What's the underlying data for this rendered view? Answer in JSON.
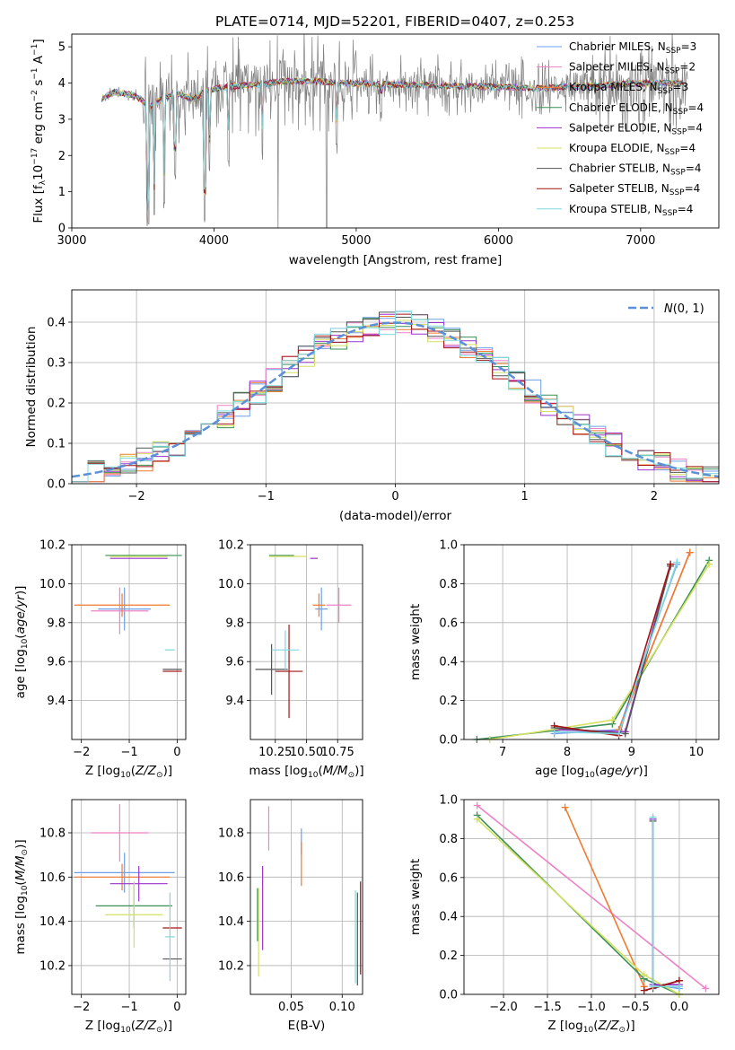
{
  "title": "PLATE=0714, MJD=52201, FIBERID=0407, z=0.253",
  "colors": {
    "chabrier_miles": "#6f9fe8",
    "salpeter_miles": "#ee82c6",
    "kroupa_miles": "#f07a2e",
    "chabrier_elodie": "#3a8f57",
    "salpeter_elodie": "#9a33cc",
    "kroupa_elodie": "#d4e060",
    "chabrier_stelib": "#555555",
    "salpeter_stelib": "#a31414",
    "kroupa_stelib": "#7fd8e0",
    "data": "#808080",
    "normal": "#5b8fd8"
  },
  "chart_data": [
    {
      "id": "spectrum",
      "type": "line",
      "xlabel": "wavelength [Angstrom, rest frame]",
      "ylabel": "Flux [f",
      "xlim": [
        3000,
        7550
      ],
      "ylim": [
        0,
        5.35
      ],
      "xticks": [
        "3000",
        "4000",
        "5000",
        "6000",
        "7000"
      ],
      "yticks": [
        "0",
        "1",
        "2",
        "3",
        "4",
        "5"
      ],
      "legend": [
        {
          "label": "Chabrier MILES, N",
          "sub": "SSP",
          "suffix": "=3",
          "color": "#6f9fe8"
        },
        {
          "label": "Salpeter MILES, N",
          "sub": "SSP",
          "suffix": "=2",
          "color": "#ee82c6"
        },
        {
          "label": "Kroupa MILES, N",
          "sub": "SSP",
          "suffix": "=3",
          "color": "#f07a2e"
        },
        {
          "label": "Chabrier ELODIE, N",
          "sub": "SSP",
          "suffix": "=4",
          "color": "#3a8f57"
        },
        {
          "label": "Salpeter ELODIE, N",
          "sub": "SSP",
          "suffix": "=4",
          "color": "#9a33cc"
        },
        {
          "label": "Kroupa ELODIE, N",
          "sub": "SSP",
          "suffix": "=4",
          "color": "#d4e060"
        },
        {
          "label": "Chabrier STELIB, N",
          "sub": "SSP",
          "suffix": "=4",
          "color": "#555555"
        },
        {
          "label": "Salpeter STELIB, N",
          "sub": "SSP",
          "suffix": "=4",
          "color": "#a31414"
        },
        {
          "label": "Kroupa STELIB, N",
          "sub": "SSP",
          "suffix": "=4",
          "color": "#7fd8e0"
        }
      ],
      "continuum": [
        [
          3200,
          3.55
        ],
        [
          3300,
          3.75
        ],
        [
          3450,
          3.65
        ],
        [
          3550,
          3.35
        ],
        [
          3650,
          3.6
        ],
        [
          3750,
          3.7
        ],
        [
          3850,
          3.55
        ],
        [
          3950,
          3.8
        ],
        [
          4100,
          3.9
        ],
        [
          4300,
          3.95
        ],
        [
          4500,
          4.05
        ],
        [
          4700,
          4.05
        ],
        [
          4900,
          4.0
        ],
        [
          5100,
          3.98
        ],
        [
          5300,
          3.95
        ],
        [
          5500,
          3.95
        ],
        [
          5700,
          3.92
        ],
        [
          5900,
          3.9
        ],
        [
          6100,
          3.88
        ],
        [
          6300,
          3.85
        ],
        [
          6500,
          3.9
        ],
        [
          6700,
          3.92
        ],
        [
          6900,
          3.98
        ],
        [
          7100,
          4.0
        ],
        [
          7300,
          4.0
        ]
      ],
      "absorption_lines": [
        [
          3530,
          0
        ],
        [
          3580,
          0.1
        ],
        [
          3650,
          0.5
        ],
        [
          3727,
          1.2
        ],
        [
          3933,
          0
        ],
        [
          3968,
          1.4
        ],
        [
          4101,
          1.6
        ],
        [
          4340,
          1.8
        ],
        [
          4861,
          2.0
        ],
        [
          5175,
          2.8
        ]
      ]
    },
    {
      "id": "residuals",
      "type": "line",
      "xlabel": "(data-model)/error",
      "ylabel": "Normed distribution",
      "xlim": [
        -2.5,
        2.5
      ],
      "ylim": [
        0,
        0.48
      ],
      "xticks": [
        "-2",
        "-1",
        "0",
        "1",
        "2"
      ],
      "yticks": [
        "0.0",
        "0.1",
        "0.2",
        "0.3",
        "0.4"
      ],
      "legend_label": "N(0,1)",
      "bins": 40
    },
    {
      "id": "age_vs_Z",
      "type": "scatter",
      "xlabel": "Z [log10(Z/Z_sun)]",
      "ylabel": "age [log10(age/yr)]",
      "xlim": [
        -2.2,
        0.18
      ],
      "ylim": [
        9.2,
        10.2
      ],
      "xticks": [
        "-2",
        "-1",
        "0"
      ],
      "yticks": [
        "9.4",
        "9.6",
        "9.8",
        "10.0",
        "10.2"
      ],
      "points": [
        {
          "c": "#6f9fe8",
          "x": -1.1,
          "xe": 0.55,
          "y": 9.87,
          "ye": 0.11
        },
        {
          "c": "#ee82c6",
          "x": -1.2,
          "xe": 0.6,
          "y": 9.86,
          "ye": 0.12
        },
        {
          "c": "#f07a2e",
          "x": -1.15,
          "xe": 1.0,
          "y": 9.89,
          "ye": 0.06
        },
        {
          "c": "#3a8f57",
          "x": -0.7,
          "xe": 0.8,
          "y": 10.145,
          "ye": 0.0
        },
        {
          "c": "#9a33cc",
          "x": -0.8,
          "xe": 0.6,
          "y": 10.13,
          "ye": 0.0
        },
        {
          "c": "#d4e060",
          "x": -0.8,
          "xe": 0.6,
          "y": 10.14,
          "ye": 0.0
        },
        {
          "c": "#555555",
          "x": -0.1,
          "xe": 0.2,
          "y": 9.56,
          "ye": 0.0
        },
        {
          "c": "#a31414",
          "x": -0.1,
          "xe": 0.2,
          "y": 9.55,
          "ye": 0.0
        },
        {
          "c": "#7fd8e0",
          "x": -0.15,
          "xe": 0.1,
          "y": 9.66,
          "ye": 0.0
        }
      ]
    },
    {
      "id": "age_vs_mass",
      "type": "scatter",
      "xlabel": "mass [log10(M/M_sun)]",
      "ylabel": "",
      "xlim": [
        10.05,
        10.95
      ],
      "ylim": [
        9.2,
        10.2
      ],
      "xticks": [
        "10.25",
        "10.50",
        "10.75"
      ],
      "yticks": [
        "9.4",
        "9.6",
        "9.8",
        "10.0",
        "10.2"
      ],
      "points": [
        {
          "c": "#6f9fe8",
          "x": 10.62,
          "xe": 0.05,
          "y": 9.87,
          "ye": 0.11
        },
        {
          "c": "#ee82c6",
          "x": 10.76,
          "xe": 0.1,
          "y": 9.89,
          "ye": 0.09
        },
        {
          "c": "#f07a2e",
          "x": 10.6,
          "xe": 0.05,
          "y": 9.89,
          "ye": 0.06
        },
        {
          "c": "#3a8f57",
          "x": 10.3,
          "xe": 0.1,
          "y": 10.145,
          "ye": 0.0
        },
        {
          "c": "#9a33cc",
          "x": 10.56,
          "xe": 0.03,
          "y": 10.13,
          "ye": 0.0
        },
        {
          "c": "#d4e060",
          "x": 10.35,
          "xe": 0.15,
          "y": 10.14,
          "ye": 0.0
        },
        {
          "c": "#555555",
          "x": 10.22,
          "xe": 0.13,
          "y": 9.56,
          "ye": 0.13
        },
        {
          "c": "#a31414",
          "x": 10.36,
          "xe": 0.11,
          "y": 9.55,
          "ye": 0.24
        },
        {
          "c": "#7fd8e0",
          "x": 10.33,
          "xe": 0.11,
          "y": 9.66,
          "ye": 0.1
        }
      ]
    },
    {
      "id": "weight_vs_age",
      "type": "line",
      "xlabel": "age [log10(age/yr)]",
      "ylabel": "mass weight",
      "xlim": [
        6.4,
        10.35
      ],
      "ylim": [
        0,
        1.0
      ],
      "xticks": [
        "7",
        "8",
        "9",
        "10"
      ],
      "yticks": [
        "0.0",
        "0.2",
        "0.4",
        "0.6",
        "0.8",
        "1.0"
      ],
      "series": [
        {
          "c": "#6f9fe8",
          "pts": [
            [
              7.8,
              0.03
            ],
            [
              8.8,
              0.05
            ],
            [
              9.7,
              0.9
            ]
          ]
        },
        {
          "c": "#ee82c6",
          "pts": [
            [
              8.8,
              0.05
            ],
            [
              9.9,
              0.96
            ]
          ]
        },
        {
          "c": "#f07a2e",
          "pts": [
            [
              8.8,
              0.05
            ],
            [
              9.9,
              0.96
            ]
          ]
        },
        {
          "c": "#3a8f57",
          "pts": [
            [
              6.6,
              0.0
            ],
            [
              8.7,
              0.08
            ],
            [
              10.2,
              0.92
            ]
          ]
        },
        {
          "c": "#9a33cc",
          "pts": [
            [
              7.8,
              0.05
            ],
            [
              8.9,
              0.04
            ],
            [
              9.6,
              0.9
            ]
          ]
        },
        {
          "c": "#d4e060",
          "pts": [
            [
              6.8,
              0.0
            ],
            [
              8.7,
              0.1
            ],
            [
              10.2,
              0.9
            ]
          ]
        },
        {
          "c": "#555555",
          "pts": [
            [
              7.8,
              0.06
            ],
            [
              8.9,
              0.03
            ],
            [
              9.6,
              0.89
            ]
          ]
        },
        {
          "c": "#a31414",
          "pts": [
            [
              7.8,
              0.07
            ],
            [
              8.8,
              0.02
            ],
            [
              9.6,
              0.9
            ]
          ]
        },
        {
          "c": "#7fd8e0",
          "pts": [
            [
              7.8,
              0.04
            ],
            [
              8.8,
              0.03
            ],
            [
              9.7,
              0.91
            ]
          ]
        }
      ]
    },
    {
      "id": "mass_vs_Z",
      "type": "scatter",
      "xlabel": "Z [log10(Z/Z_sun)]",
      "ylabel": "mass [log10(M/M_sun)]",
      "xlim": [
        -2.2,
        0.18
      ],
      "ylim": [
        10.07,
        10.95
      ],
      "xticks": [
        "-2",
        "-1",
        "0"
      ],
      "yticks": [
        "10.2",
        "10.4",
        "10.6",
        "10.8"
      ],
      "points": [
        {
          "c": "#6f9fe8",
          "x": -1.1,
          "xe": 1.05,
          "y": 10.62,
          "ye": 0.09
        },
        {
          "c": "#ee82c6",
          "x": -1.2,
          "xe": 0.6,
          "y": 10.8,
          "ye": 0.13
        },
        {
          "c": "#f07a2e",
          "x": -1.15,
          "xe": 1.0,
          "y": 10.6,
          "ye": 0.06
        },
        {
          "c": "#3a8f57",
          "x": -0.9,
          "xe": 0.8,
          "y": 10.47,
          "ye": 0.1
        },
        {
          "c": "#9a33cc",
          "x": -0.8,
          "xe": 0.6,
          "y": 10.57,
          "ye": 0.08
        },
        {
          "c": "#d4e060",
          "x": -0.9,
          "xe": 0.6,
          "y": 10.43,
          "ye": 0.15
        },
        {
          "c": "#555555",
          "x": -0.1,
          "xe": 0.2,
          "y": 10.23,
          "ye": 0.0
        },
        {
          "c": "#a31414",
          "x": -0.1,
          "xe": 0.2,
          "y": 10.37,
          "ye": 0.0
        },
        {
          "c": "#7fd8e0",
          "x": -0.15,
          "xe": 0.1,
          "y": 10.33,
          "ye": 0.2
        }
      ]
    },
    {
      "id": "mass_vs_ebv",
      "type": "scatter",
      "xlabel": "E(B-V)",
      "ylabel": "",
      "xlim": [
        0.01,
        0.12
      ],
      "ylim": [
        10.07,
        10.95
      ],
      "xticks": [
        "0.05",
        "0.10"
      ],
      "yticks": [
        "10.2",
        "10.4",
        "10.6",
        "10.8"
      ],
      "points": [
        {
          "c": "#6f9fe8",
          "x": 0.06,
          "y": 10.76,
          "ye": 0.06
        },
        {
          "c": "#ee82c6",
          "x": 0.028,
          "y": 10.82,
          "ye": 0.1
        },
        {
          "c": "#f07a2e",
          "x": 0.06,
          "y": 10.66,
          "ye": 0.1
        },
        {
          "c": "#3a8f57",
          "x": 0.017,
          "y": 10.43,
          "ye": 0.12
        },
        {
          "c": "#9a33cc",
          "x": 0.022,
          "y": 10.46,
          "ye": 0.19
        },
        {
          "c": "#d4e060",
          "x": 0.018,
          "y": 10.35,
          "ye": 0.2
        },
        {
          "c": "#555555",
          "x": 0.115,
          "y": 10.32,
          "ye": 0.21
        },
        {
          "c": "#a31414",
          "x": 0.118,
          "y": 10.37,
          "ye": 0.21
        },
        {
          "c": "#7fd8e0",
          "x": 0.113,
          "y": 10.33,
          "ye": 0.21
        }
      ]
    },
    {
      "id": "weight_vs_Z",
      "type": "line",
      "xlabel": "Z [log10(Z/Z_sun)]",
      "ylabel": "mass weight",
      "xlim": [
        -2.45,
        0.45
      ],
      "ylim": [
        0,
        1.0
      ],
      "xticks": [
        "-2.0",
        "-1.5",
        "-1.0",
        "-0.5",
        "0.0"
      ],
      "yticks": [
        "0.0",
        "0.2",
        "0.4",
        "0.6",
        "0.8",
        "1.0"
      ],
      "series": [
        {
          "c": "#6f9fe8",
          "pts": [
            [
              -0.3,
              0.9
            ],
            [
              -0.3,
              0.05
            ],
            [
              0.0,
              0.03
            ]
          ]
        },
        {
          "c": "#ee82c6",
          "pts": [
            [
              -2.3,
              0.97
            ],
            [
              0.3,
              0.03
            ]
          ]
        },
        {
          "c": "#f07a2e",
          "pts": [
            [
              -1.3,
              0.96
            ],
            [
              -0.4,
              0.04
            ]
          ]
        },
        {
          "c": "#3a8f57",
          "pts": [
            [
              -2.3,
              0.92
            ],
            [
              -0.4,
              0.08
            ],
            [
              0.0,
              0.0
            ]
          ]
        },
        {
          "c": "#9a33cc",
          "pts": [
            [
              -0.3,
              0.9
            ],
            [
              -0.3,
              0.05
            ],
            [
              0.0,
              0.05
            ]
          ]
        },
        {
          "c": "#d4e060",
          "pts": [
            [
              -2.3,
              0.9
            ],
            [
              -0.4,
              0.1
            ],
            [
              0.0,
              0.0
            ]
          ]
        },
        {
          "c": "#555555",
          "pts": [
            [
              -0.3,
              0.89
            ],
            [
              -0.3,
              0.03
            ],
            [
              0.0,
              0.07
            ]
          ]
        },
        {
          "c": "#a31414",
          "pts": [
            [
              -0.4,
              0.02
            ],
            [
              0.0,
              0.07
            ]
          ]
        },
        {
          "c": "#7fd8e0",
          "pts": [
            [
              -0.3,
              0.91
            ],
            [
              -0.3,
              0.04
            ],
            [
              0.0,
              0.04
            ]
          ]
        }
      ]
    }
  ]
}
